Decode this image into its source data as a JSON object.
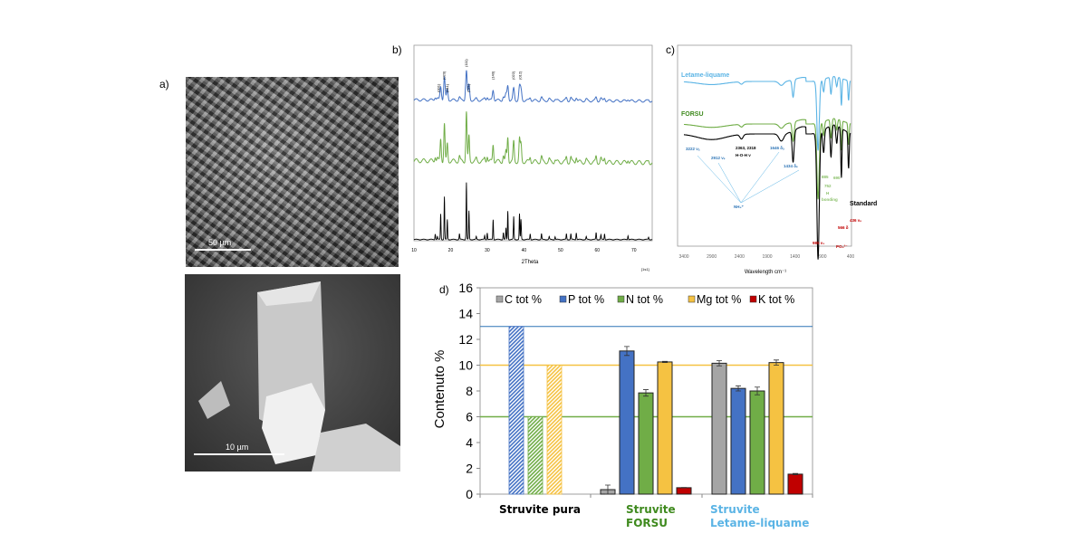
{
  "panels": {
    "a": {
      "label": "a)",
      "top_scale": "50 µm",
      "bottom_scale": "10 µm"
    },
    "b": {
      "label": "b)"
    },
    "c": {
      "label": "c)"
    },
    "d": {
      "label": "d)"
    }
  },
  "chart_data": [
    {
      "panel": "b",
      "type": "line",
      "xlabel": "2Theta",
      "corner_note": "[1s1]",
      "xlim": [
        10,
        75
      ],
      "xticks": [
        10,
        20,
        30,
        40,
        50,
        60,
        70
      ],
      "series_colors": [
        "#4472c4",
        "#70ad47",
        "#000000"
      ],
      "peak_labels": [
        "(001)",
        "(020)",
        "(011)",
        "(111)",
        "(021)",
        "(140)",
        "(022)",
        "(012)"
      ],
      "peaks_2theta": [
        15.8,
        16.4,
        17.3,
        18.3,
        19.1,
        22.4,
        24.3,
        25.0,
        27.0,
        29.3,
        30.0,
        31.6,
        34.4,
        35.1,
        35.6,
        37.2,
        38.8,
        39.2,
        41.7,
        44.8,
        46.9,
        48.5,
        51.6,
        52.8,
        54.3,
        57.0,
        59.7,
        61.0,
        62.0,
        68.4,
        74.0
      ],
      "peaks_rel_intensity": [
        0.1,
        0.05,
        0.45,
        0.75,
        0.35,
        0.1,
        1.0,
        0.5,
        0.05,
        0.07,
        0.12,
        0.35,
        0.12,
        0.2,
        0.5,
        0.4,
        0.45,
        0.35,
        0.1,
        0.1,
        0.05,
        0.05,
        0.1,
        0.1,
        0.12,
        0.05,
        0.12,
        0.08,
        0.1,
        0.07,
        0.04
      ]
    },
    {
      "panel": "c",
      "type": "line",
      "xlabel": "Wavelength cm⁻¹",
      "xlim": [
        3400,
        400
      ],
      "xticks": [
        3400,
        2900,
        2400,
        1900,
        1400,
        900,
        400
      ],
      "series": [
        {
          "name": "Letame-liquame",
          "color": "#5bb4e5"
        },
        {
          "name": "FORSU",
          "color": "#70ad47"
        },
        {
          "name": "Standard",
          "color": "#000000"
        }
      ],
      "bands_cm": [
        2900,
        2363,
        1646,
        1434,
        985,
        885,
        752,
        650,
        566,
        436
      ],
      "bands_rel_depth": [
        0.25,
        0.05,
        0.08,
        0.35,
        1.0,
        0.25,
        0.35,
        0.2,
        0.55,
        0.4
      ],
      "annotations": {
        "a3222": "3222 νₐ",
        "a2912": "2912 νₛ",
        "hoh1": "2363, 2318",
        "hoh2": "H-O-H ν",
        "a1646": "1646 δₐ",
        "a1434": "1434 δₛ",
        "nh4": "NH₄⁺",
        "a885": "885",
        "a752": "752",
        "a690": "690",
        "hb1": "H",
        "hb2": "bonding",
        "a985": "985 ν₃",
        "a566": "566 δ",
        "a436": "436 νₛ",
        "po4": "PO₄³⁻"
      }
    },
    {
      "panel": "d",
      "type": "bar",
      "ylabel": "Contenuto %",
      "ylim": [
        0,
        16
      ],
      "yticks": [
        0,
        2,
        4,
        6,
        8,
        10,
        12,
        14,
        16
      ],
      "categories": [
        "Struvite pura",
        "Struvite FORSU",
        "Struvite Letame-liquame"
      ],
      "category_lines": [
        [
          "Struvite pura"
        ],
        [
          "Struvite",
          "FORSU"
        ],
        [
          "Struvite",
          "Letame-liquame"
        ]
      ],
      "category_colors": [
        "#000000",
        "#3f8a1e",
        "#5bb4e5"
      ],
      "series": [
        {
          "name": "C tot %",
          "color": "#a5a5a5",
          "values": [
            null,
            0.35,
            10.15
          ],
          "errors": [
            null,
            0.35,
            0.2
          ]
        },
        {
          "name": "P tot %",
          "color": "#4472c4",
          "values": [
            13.0,
            11.1,
            8.2
          ],
          "errors": [
            null,
            0.35,
            0.2
          ]
        },
        {
          "name": "N tot %",
          "color": "#70ad47",
          "values": [
            6.0,
            7.85,
            8.0
          ],
          "errors": [
            null,
            0.25,
            0.3
          ]
        },
        {
          "name": "Mg tot %",
          "color": "#f5c242",
          "values": [
            10.0,
            10.25,
            10.2
          ],
          "errors": [
            null,
            0.05,
            0.2
          ]
        },
        {
          "name": "K tot %",
          "color": "#c00000",
          "values": [
            null,
            0.5,
            1.55
          ],
          "errors": [
            null,
            0.02,
            0.05
          ]
        }
      ],
      "hatched_category": "Struvite pura",
      "reference_lines": [
        {
          "value": 13,
          "color": "#2e75b6"
        },
        {
          "value": 10,
          "color": "#f5c242"
        },
        {
          "value": 6,
          "color": "#70ad47"
        }
      ],
      "legend_position": "top"
    }
  ]
}
